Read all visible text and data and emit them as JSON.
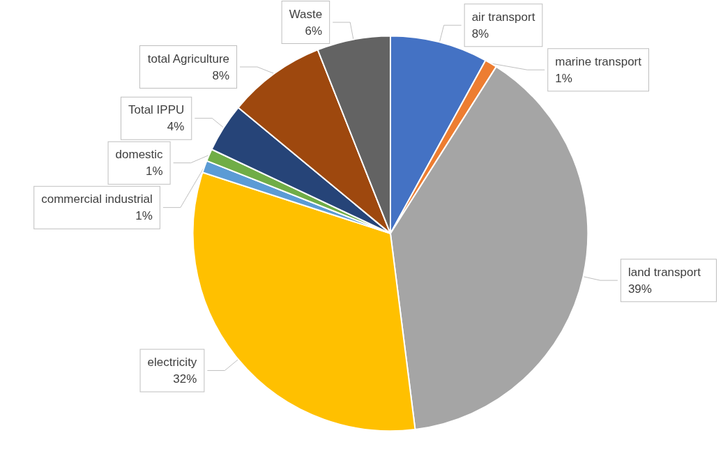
{
  "chart_data": {
    "type": "pie",
    "categories": [
      "air transport",
      "marine transport",
      "land transport",
      "electricity",
      "commercial industrial",
      "domestic",
      "Total IPPU",
      "total Agriculture",
      "Waste"
    ],
    "values": [
      8,
      1,
      39,
      32,
      1,
      1,
      4,
      8,
      6
    ],
    "value_labels": [
      "8%",
      "1%",
      "39%",
      "32%",
      "1%",
      "1%",
      "4%",
      "8%",
      "6%"
    ],
    "colors": [
      "#4472c4",
      "#ed7d31",
      "#a5a5a5",
      "#ffc000",
      "#5b9bd5",
      "#70ad47",
      "#264478",
      "#9e480e",
      "#636363"
    ],
    "legend": false
  }
}
